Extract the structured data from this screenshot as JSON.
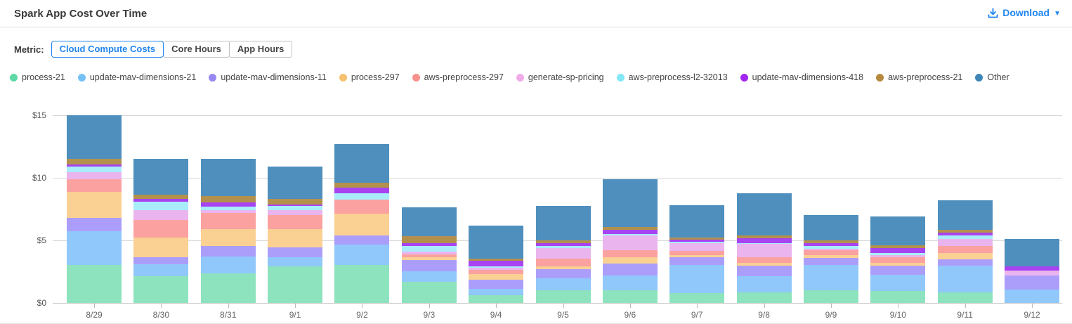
{
  "header": {
    "title": "Spark App Cost Over Time",
    "download_label": "Download",
    "caret_glyph": "▼"
  },
  "metric": {
    "label": "Metric:",
    "options": [
      {
        "label": "Cloud Compute Costs",
        "active": true
      },
      {
        "label": "Core Hours",
        "active": false
      },
      {
        "label": "App Hours",
        "active": false
      }
    ]
  },
  "colors": {
    "accent_blue": "#2186f0",
    "grid": "#d6d6d6",
    "axis_text": "#555",
    "legend_text": "#444"
  },
  "chart_data": {
    "type": "bar",
    "stacked": true,
    "title": "Spark App Cost Over Time",
    "xlabel": "",
    "ylabel": "",
    "ylim": [
      0,
      15
    ],
    "yticks": [
      0,
      5,
      10,
      15
    ],
    "ytick_labels": [
      "$0",
      "$5",
      "$10",
      "$15"
    ],
    "grid": true,
    "legend_position": "top",
    "categories": [
      "8/29",
      "8/30",
      "8/31",
      "9/1",
      "9/2",
      "9/3",
      "9/4",
      "9/5",
      "9/6",
      "9/7",
      "9/8",
      "9/9",
      "9/10",
      "9/11",
      "9/12"
    ],
    "series": [
      {
        "name": "process-21",
        "bar_color": "#8de3bd",
        "legend_color": "#5ed8a5",
        "values": [
          3.02,
          2.16,
          2.36,
          2.92,
          3.05,
          1.66,
          0.6,
          1.01,
          1.01,
          0.78,
          0.82,
          1.01,
          0.94,
          0.85,
          0.0
        ]
      },
      {
        "name": "update-mav-dimensions-21",
        "bar_color": "#90c8fb",
        "legend_color": "#74c1f6",
        "values": [
          2.71,
          0.94,
          1.37,
          0.71,
          1.62,
          0.85,
          0.55,
          0.95,
          1.19,
          2.24,
          1.29,
          2.01,
          1.32,
          2.13,
          1.09
        ]
      },
      {
        "name": "update-mav-dimensions-11",
        "bar_color": "#ab9efb",
        "legend_color": "#9688f0",
        "values": [
          1.08,
          0.57,
          0.84,
          0.81,
          0.75,
          0.9,
          0.7,
          0.72,
          0.95,
          0.61,
          0.85,
          0.57,
          0.7,
          0.51,
          1.08
        ]
      },
      {
        "name": "process-297",
        "bar_color": "#fad093",
        "legend_color": "#f6c170",
        "values": [
          2.08,
          1.56,
          1.32,
          1.45,
          1.7,
          0.25,
          0.45,
          0.23,
          0.51,
          0.19,
          0.25,
          0.23,
          0.25,
          0.48,
          0.0
        ]
      },
      {
        "name": "aws-preprocess-297",
        "bar_color": "#fba1a0",
        "legend_color": "#f8918b",
        "values": [
          1.0,
          1.41,
          1.28,
          1.12,
          1.13,
          0.22,
          0.35,
          0.62,
          0.53,
          0.34,
          0.45,
          0.37,
          0.45,
          0.61,
          0.0
        ]
      },
      {
        "name": "generate-sp-pricing",
        "bar_color": "#eab4ee",
        "legend_color": "#efaae9",
        "values": [
          0.57,
          0.8,
          0.26,
          0.42,
          0.0,
          0.2,
          0.19,
          0.86,
          1.18,
          0.6,
          1.04,
          0.16,
          0.16,
          0.52,
          0.43
        ]
      },
      {
        "name": "aws-preprocess-l2-32013",
        "bar_color": "#a9edfa",
        "legend_color": "#82e8f6",
        "values": [
          0.44,
          0.66,
          0.26,
          0.3,
          0.53,
          0.5,
          0.1,
          0.18,
          0.15,
          0.14,
          0.1,
          0.18,
          0.15,
          0.27,
          0.0
        ]
      },
      {
        "name": "update-mav-dimensions-418",
        "bar_color": "#a843f2",
        "legend_color": "#a026f0",
        "values": [
          0.18,
          0.2,
          0.32,
          0.15,
          0.42,
          0.22,
          0.42,
          0.19,
          0.34,
          0.15,
          0.38,
          0.23,
          0.42,
          0.24,
          0.32
        ]
      },
      {
        "name": "aws-preprocess-21",
        "bar_color": "#b3914d",
        "legend_color": "#b58a3e",
        "values": [
          0.46,
          0.38,
          0.51,
          0.45,
          0.41,
          0.55,
          0.18,
          0.23,
          0.23,
          0.19,
          0.23,
          0.23,
          0.22,
          0.23,
          0.0
        ]
      },
      {
        "name": "Other",
        "bar_color": "#4e8fbd",
        "legend_color": "#3f86b8",
        "values": [
          3.46,
          2.82,
          2.98,
          2.6,
          3.09,
          2.28,
          2.66,
          2.77,
          3.82,
          2.56,
          3.37,
          2.04,
          2.28,
          2.35,
          2.18
        ]
      }
    ]
  }
}
